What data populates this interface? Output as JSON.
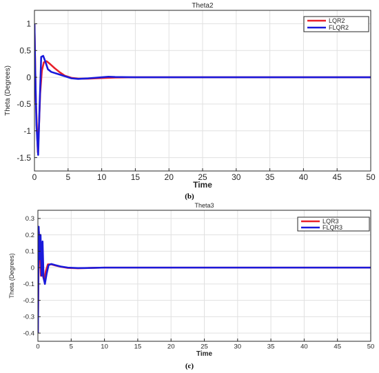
{
  "figure": {
    "caption_b": "(b)",
    "caption_c": "(c)"
  },
  "chart_data": [
    {
      "type": "line",
      "title": "Theta2",
      "xlabel": "Time",
      "ylabel": "Theta (Degrees)",
      "xlim": [
        0,
        50
      ],
      "ylim": [
        -1.75,
        1.25
      ],
      "xticks": [
        0,
        5,
        10,
        15,
        20,
        25,
        30,
        35,
        40,
        45,
        50
      ],
      "xtick_labels": [
        "0",
        "5",
        "10",
        "15",
        "20",
        "25",
        "30",
        "35",
        "40",
        "45",
        "50"
      ],
      "yticks": [
        1,
        0.5,
        0,
        -0.5,
        -1,
        -1.5
      ],
      "ytick_labels": [
        "1",
        "0.5",
        "0",
        "-0.5",
        "-1",
        "-1.5"
      ],
      "grid": true,
      "legend_position": "top-right",
      "series": [
        {
          "name": "LQR2",
          "color": "#e8202a",
          "x": [
            0,
            0.2,
            0.5,
            0.65,
            0.85,
            1.1,
            1.4,
            1.8,
            2.3,
            3.0,
            3.8,
            4.5,
            5.5,
            6.5,
            8.0,
            10.0,
            12.0,
            15.0,
            50.0
          ],
          "y": [
            1.0,
            -0.4,
            -1.4,
            -1.0,
            -0.3,
            0.12,
            0.28,
            0.3,
            0.25,
            0.17,
            0.09,
            0.03,
            -0.01,
            -0.025,
            -0.025,
            -0.015,
            -0.005,
            0.0,
            0.0
          ]
        },
        {
          "name": "FLQR2",
          "color": "#1a1adb",
          "x": [
            0,
            0.1,
            0.3,
            0.55,
            0.75,
            1.0,
            1.3,
            1.6,
            2.0,
            2.5,
            3.5,
            4.5,
            5.5,
            6.5,
            8.0,
            10.0,
            11.0,
            12.0,
            15.0,
            50.0
          ],
          "y": [
            1.0,
            0.2,
            -0.9,
            -1.45,
            -0.6,
            0.38,
            0.4,
            0.3,
            0.15,
            0.1,
            0.06,
            0.02,
            -0.02,
            -0.03,
            -0.02,
            0.0,
            0.01,
            0.005,
            0.0,
            0.0
          ]
        }
      ]
    },
    {
      "type": "line",
      "title": "Theta3",
      "xlabel": "Time",
      "ylabel": "Theta (Degrees)",
      "xlim": [
        0,
        50
      ],
      "ylim": [
        -0.45,
        0.35
      ],
      "xticks": [
        0,
        5,
        10,
        15,
        20,
        25,
        30,
        35,
        40,
        45,
        50
      ],
      "xtick_labels": [
        "0",
        "5",
        "10",
        "15",
        "20",
        "25",
        "30",
        "35",
        "40",
        "45",
        "50"
      ],
      "yticks": [
        0.3,
        0.2,
        0.1,
        0,
        -0.1,
        -0.2,
        -0.3,
        -0.4
      ],
      "ytick_labels": [
        "0.3",
        "0.2",
        "0.1",
        "0",
        "-0.1",
        "-0.2",
        "-0.3",
        "-0.4"
      ],
      "grid": true,
      "legend_position": "top-right",
      "series": [
        {
          "name": "LQR3",
          "color": "#e8202a",
          "x": [
            0,
            0.15,
            0.3,
            0.45,
            0.6,
            0.75,
            0.95,
            1.2,
            1.5,
            2.0,
            2.7,
            3.5,
            4.5,
            6.0,
            8.0,
            10.0,
            50.0
          ],
          "y": [
            -0.4,
            0.22,
            0.12,
            -0.05,
            0.08,
            -0.05,
            -0.08,
            -0.02,
            0.02,
            0.02,
            0.012,
            0.005,
            -0.002,
            -0.004,
            -0.002,
            0.0,
            0.0
          ]
        },
        {
          "name": "FLQR3",
          "color": "#1a1adb",
          "x": [
            0,
            0.12,
            0.25,
            0.4,
            0.55,
            0.7,
            0.85,
            1.05,
            1.3,
            1.6,
            2.0,
            2.6,
            3.5,
            4.5,
            6.0,
            8.0,
            10.0,
            50.0
          ],
          "y": [
            -0.4,
            0.25,
            0.05,
            0.2,
            -0.05,
            0.16,
            -0.06,
            -0.1,
            -0.04,
            0.015,
            0.022,
            0.015,
            0.006,
            0.0,
            -0.003,
            -0.002,
            0.0,
            0.0
          ]
        }
      ]
    }
  ]
}
